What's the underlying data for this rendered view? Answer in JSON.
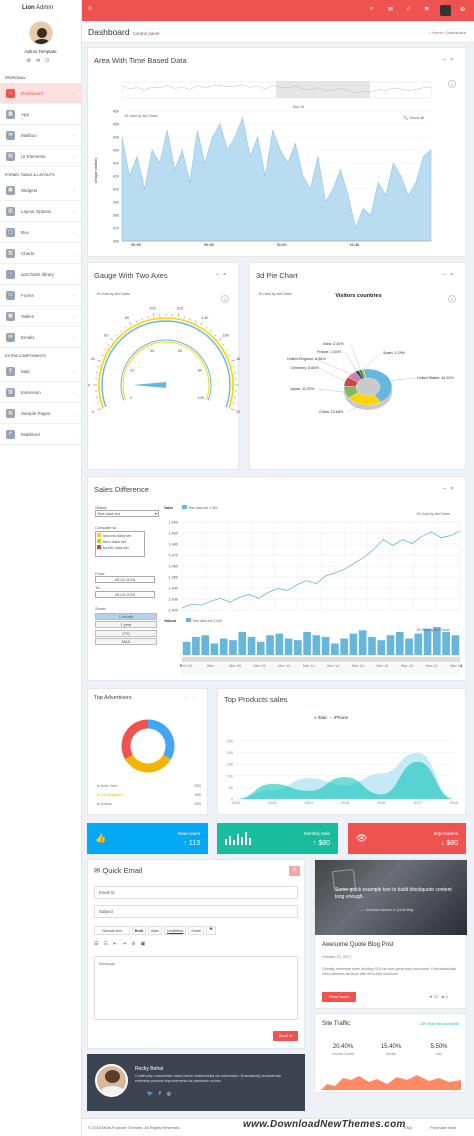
{
  "sidebar": {
    "logo_bold": "Lion",
    "logo_rest": " Admin",
    "user_name": "Admin Template",
    "section_personal": "PERSONAL",
    "section_forms": "FORMS, TABLE & LAYOUTS",
    "section_extra": "EXTRA COMPONENTS",
    "items": [
      {
        "label": "Dashboard"
      },
      {
        "label": "App"
      },
      {
        "label": "Mailbox"
      },
      {
        "label": "UI Elements"
      },
      {
        "label": "Widgets"
      },
      {
        "label": "Layout Options"
      },
      {
        "label": "Box"
      },
      {
        "label": "Charts"
      },
      {
        "label": "amCharts library"
      },
      {
        "label": "Forms"
      },
      {
        "label": "Tables"
      },
      {
        "label": "Emails"
      },
      {
        "label": "Map"
      },
      {
        "label": "Extension"
      },
      {
        "label": "Sample Pages"
      },
      {
        "label": "Multilevel"
      }
    ]
  },
  "header": {
    "title": "Dashboard",
    "subtitle": "Control panel",
    "breadcrumb_home": "Home",
    "breadcrumb_current": "Dashboard"
  },
  "area_chart": {
    "title": "Area With Time Based Data",
    "credit": "JS chart by amCharts",
    "show_all": "Show all",
    "scroll_label": "Mar 26",
    "chart_data": {
      "type": "area",
      "ylabel": "Unique visitors",
      "ylim": [
        360,
        460
      ],
      "yticks": [
        "460",
        "450",
        "440",
        "430",
        "420",
        "410",
        "400",
        "390",
        "380",
        "370",
        "360"
      ],
      "xticks": [
        "00:00",
        "00:30",
        "01:00",
        "01:30"
      ],
      "values": [
        440,
        410,
        425,
        400,
        430,
        420,
        445,
        415,
        430,
        405,
        445,
        420,
        440,
        450,
        430,
        440,
        455,
        425,
        440,
        410,
        445,
        430,
        420,
        435,
        410,
        400,
        425,
        390,
        400,
        415,
        395,
        370,
        385,
        380,
        405,
        395,
        420,
        410,
        395,
        405,
        425,
        430
      ]
    }
  },
  "gauge": {
    "title": "Gauge With Two Axes",
    "credit": "JS chart by amCharts",
    "chart_data": {
      "type": "gauge",
      "outer_ticks": [
        "0",
        "20",
        "40",
        "60",
        "80",
        "100",
        "120",
        "140",
        "160",
        "180",
        "200",
        "220"
      ],
      "inner_ticks": [
        "0",
        "20",
        "40",
        "60",
        "80",
        "100"
      ],
      "value": 20
    }
  },
  "pie": {
    "title": "3d Pie Chart",
    "credit": "JS chart by amCharts",
    "chart_data": {
      "type": "pie",
      "title": "Visitors countries",
      "slices": [
        {
          "name": "United States",
          "value": 44.22,
          "label": "United States: 44.22%",
          "color": "#67b7dc"
        },
        {
          "name": "China",
          "value": 23.68,
          "label": "China: 23.68%",
          "color": "#fdd400"
        },
        {
          "name": "Japan",
          "value": 11.02,
          "label": "Japan: 11.02%",
          "color": "#84b761"
        },
        {
          "name": "Germany",
          "value": 8.66,
          "label": "Germany: 8.66%",
          "color": "#cc4748"
        },
        {
          "name": "United Kingdom",
          "value": 6.84,
          "label": "United Kingdom: 6.84%",
          "color": "#cd82ad"
        },
        {
          "name": "France",
          "value": 2.53,
          "label": "France: 2.53%",
          "color": "#2f4074"
        },
        {
          "name": "India",
          "value": 2.34,
          "label": "India: 2.34%",
          "color": "#448e4d"
        },
        {
          "name": "Spain",
          "value": 1.29,
          "label": "Spain: 1.29%",
          "color": "#b7b83f"
        }
      ]
    }
  },
  "sales": {
    "title": "Sales Difference",
    "select_label": "Select:",
    "select_value": "first data set",
    "compare_label": "Compare to:",
    "compare_options": [
      "second data set",
      "third data set",
      "fourth data set"
    ],
    "compare_colors": [
      "#fcd202",
      "#b0de09",
      "#cc4748"
    ],
    "from_label": "From:",
    "from_value": "26-02-2018",
    "to_label": "To:",
    "to_value": "26-03-2018",
    "zoom_label": "Zoom:",
    "zoom_options": [
      "1 month",
      "1 year",
      "YTD",
      "MAX"
    ],
    "credit": "JS chart by amCharts",
    "value_label": "Value",
    "value_legend": "first data set",
    "value_number": "1,491",
    "volume_label": "Volume",
    "volume_legend": "first data set",
    "volume_number": "2,044",
    "chart_data": {
      "type": "line",
      "ylim": [
        1420,
        1510
      ],
      "yticks": [
        "1,500",
        "1,490",
        "1,480",
        "1,470",
        "1,460",
        "1,450",
        "1,440",
        "1,430",
        "1,420"
      ],
      "xticks": [
        "Feb 26",
        "Mar",
        "Mar 06",
        "Mar 08",
        "Mar 10",
        "Mar 12",
        "Mar 14",
        "Mar 16",
        "Mar 18",
        "Mar 20",
        "Mar 22",
        "Mar 24"
      ],
      "values": [
        1422,
        1426,
        1425,
        1429,
        1432,
        1428,
        1433,
        1436,
        1432,
        1438,
        1442,
        1440,
        1446,
        1450,
        1447,
        1455,
        1458,
        1462,
        1468,
        1474,
        1482,
        1492,
        1486,
        1492,
        1488,
        1495,
        1500,
        1494,
        1496,
        1501
      ],
      "volume": [
        40,
        55,
        60,
        35,
        50,
        45,
        70,
        55,
        40,
        60,
        65,
        50,
        45,
        70,
        60,
        55,
        35,
        50,
        65,
        75,
        55,
        45,
        60,
        70,
        50,
        65,
        80,
        85,
        70,
        60
      ]
    }
  },
  "advertisers": {
    "title": "Top Advertisers",
    "chart_data": {
      "type": "pie",
      "slices": [
        {
          "name": "New York",
          "value": 355,
          "color": "#42a5f5"
        },
        {
          "name": "Los Angeles",
          "value": 355,
          "color": "#f4b400"
        },
        {
          "name": "Dallas",
          "value": 355,
          "color": "#ef5350"
        }
      ]
    },
    "rows": [
      {
        "label": "New York",
        "value": "355"
      },
      {
        "label": "Los Angeles",
        "value": "355"
      },
      {
        "label": "Dallas",
        "value": "355"
      }
    ]
  },
  "products": {
    "title": "Top Products sales",
    "legend": [
      "iMac",
      "iPhone"
    ],
    "chart_data": {
      "type": "area",
      "yticks": [
        "250",
        "200",
        "150",
        "100",
        "50",
        "0"
      ],
      "categories": [
        "2012",
        "2013",
        "2014",
        "2015",
        "2016",
        "2017",
        "2018"
      ],
      "series": [
        {
          "name": "iMac",
          "values": [
            0,
            65,
            35,
            95,
            20,
            160,
            0
          ],
          "color": "#00c0b2"
        },
        {
          "name": "iPhone",
          "values": [
            0,
            40,
            90,
            60,
            110,
            200,
            0
          ],
          "color": "#bfe8f4"
        }
      ]
    }
  },
  "stats": [
    {
      "title": "New Users",
      "value": "113",
      "color": "#03a9f4",
      "icon": "thumbs-up-icon"
    },
    {
      "title": "Monthly Sale",
      "value": "$80",
      "color": "#19bc9c",
      "icon": "bar-chart-icon"
    },
    {
      "title": "Impressions",
      "value": "$80",
      "color": "#ef5350",
      "icon": "eye-icon"
    }
  ],
  "email": {
    "title": "Quick Email",
    "to_placeholder": "Email to:",
    "subject_placeholder": "Subject",
    "toolbar": [
      "Normal text",
      "Bold",
      "Italic",
      "Underline",
      "Small"
    ],
    "message_placeholder": "Message",
    "send_label": "Send"
  },
  "blog": {
    "image_caption": "Some quick example text to build blockquote content long enough.",
    "caption_author": "Someone famous in Quote Blog",
    "title": "Awesome Quote Blog Post",
    "date": "October 10, 2017",
    "body": "Globally maximize team building ROI via next-generation resources. Enthusiastically mesh wireless services with error-free solutions.",
    "read_more": "Read more",
    "likes": "12",
    "comments": "5"
  },
  "traffic": {
    "title": "Site Traffic",
    "growth": "18% High then last Month",
    "stats": [
      {
        "value": "20.40%",
        "label": "Overall Growth"
      },
      {
        "value": "15.40%",
        "label": "Montly"
      },
      {
        "value": "5.50%",
        "label": "Day"
      }
    ]
  },
  "profile": {
    "name": "Rocky Behal",
    "bio": "Continually underwhelm stand-alone relationships via information. Dramatically productivate extensive process improvements for pandemic niches."
  },
  "footer": {
    "copyright": "© 2018 Multi-Purpose Themes. All Rights Reserved.",
    "faq": "FAQ",
    "purchase": "Purchase Now"
  },
  "watermark": "www.DownloadNewThemes.com",
  "accent": "#ef5350"
}
